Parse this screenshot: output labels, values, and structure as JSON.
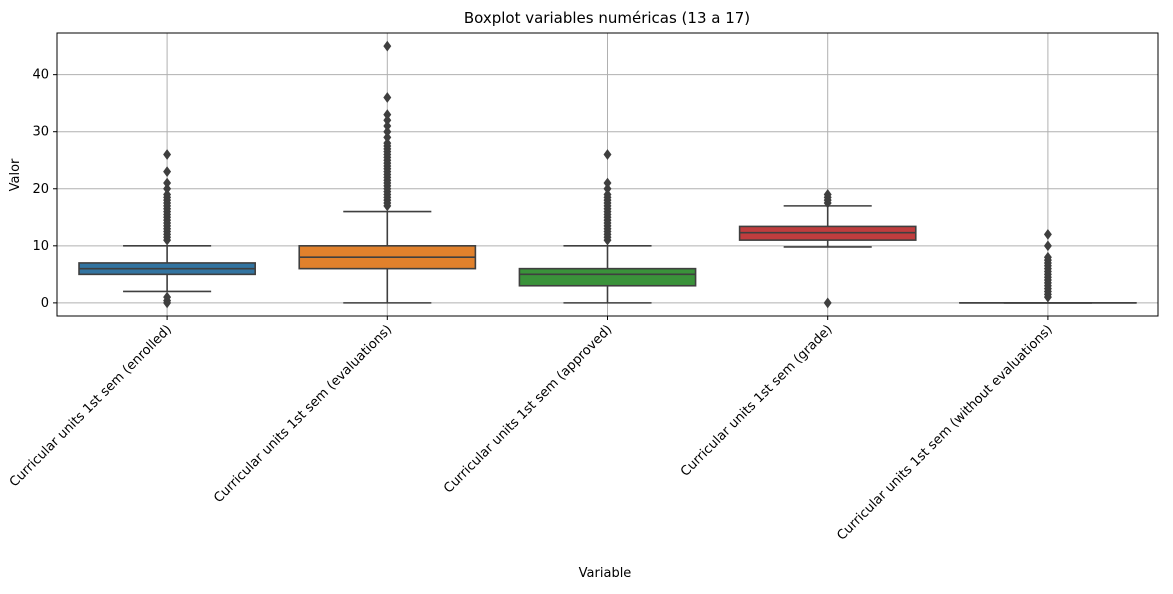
{
  "chart_data": {
    "type": "boxplot",
    "title": "Boxplot variables numéricas (13 a 17)",
    "xlabel": "Variable",
    "ylabel": "Valor",
    "ylim": [
      -2.3,
      47.3
    ],
    "yticks": [
      0,
      10,
      20,
      30,
      40
    ],
    "grid": true,
    "categories": [
      "Curricular units 1st sem (enrolled)",
      "Curricular units 1st sem (evaluations)",
      "Curricular units 1st sem (approved)",
      "Curricular units 1st sem (grade)",
      "Curricular units 1st sem (without evaluations)"
    ],
    "boxes": [
      {
        "color": "#3274a1",
        "q1": 5,
        "median": 6,
        "q3": 7,
        "whisker_low": 2,
        "whisker_high": 10,
        "outliers": [
          0,
          0.4,
          1,
          11,
          11.5,
          12,
          12.5,
          13,
          13.5,
          14,
          14.5,
          15,
          15.5,
          16,
          16.5,
          17,
          17.5,
          18,
          18.5,
          19,
          20,
          21,
          23,
          26
        ]
      },
      {
        "color": "#e1812c",
        "q1": 6,
        "median": 8,
        "q3": 10,
        "whisker_low": 0,
        "whisker_high": 16,
        "outliers": [
          17,
          17.5,
          18,
          18.5,
          19,
          19.5,
          20,
          20.5,
          21,
          21.5,
          22,
          22.5,
          23,
          23.5,
          24,
          24.5,
          25,
          25.5,
          26,
          26.5,
          27,
          27.5,
          28,
          29,
          30,
          31,
          32,
          33,
          36,
          45
        ]
      },
      {
        "color": "#3a923a",
        "q1": 3,
        "median": 5,
        "q3": 6,
        "whisker_low": 0,
        "whisker_high": 10,
        "outliers": [
          11,
          11.5,
          12,
          12.5,
          13,
          13.5,
          14,
          14.5,
          15,
          15.5,
          16,
          16.5,
          17,
          17.5,
          18,
          18.5,
          19,
          20,
          21,
          26
        ]
      },
      {
        "color": "#c03d3e",
        "q1": 11,
        "median": 12.3,
        "q3": 13.4,
        "whisker_low": 9.8,
        "whisker_high": 17,
        "outliers": [
          0,
          17.5,
          18,
          18.5,
          19
        ]
      },
      {
        "color": "#9372b2",
        "q1": 0,
        "median": 0,
        "q3": 0,
        "whisker_low": 0,
        "whisker_high": 0,
        "outliers": [
          1,
          1.5,
          2,
          2.5,
          3,
          3.5,
          4,
          4.5,
          5,
          5.5,
          6,
          6.5,
          7,
          7.5,
          8,
          10,
          12
        ]
      }
    ]
  }
}
